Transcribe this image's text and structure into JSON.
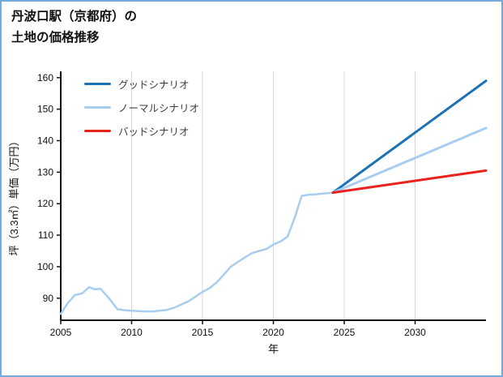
{
  "page": {
    "background": "#ffffff",
    "border_color": "#74a9dc"
  },
  "chart_data": {
    "type": "line",
    "title_lines": [
      "丹波口駅（京都府）の",
      "土地の価格推移"
    ],
    "xlabel": "年",
    "ylabel": "坪（3.3㎡）単価（万円）",
    "xlim": [
      2005,
      2035
    ],
    "ylim": [
      83,
      162
    ],
    "x_ticks": [
      2005,
      2010,
      2015,
      2020,
      2025,
      2030
    ],
    "y_ticks": [
      90,
      100,
      110,
      120,
      130,
      140,
      150,
      160
    ],
    "grid": "vertical-only",
    "grid_color": "#d8d8d8",
    "axis_color": "#111111",
    "legend_position": "top-left-inside",
    "series": [
      {
        "id": "historical-price",
        "label": "",
        "legend": false,
        "color": "#a8cdf0",
        "width": 2.5,
        "x": [
          2005,
          2005.5,
          2006,
          2006.5,
          2007,
          2007.4,
          2007.8,
          2008.4,
          2009,
          2009.5,
          2010,
          2010.5,
          2011,
          2011.5,
          2012,
          2012.5,
          2013,
          2013.5,
          2014,
          2014.5,
          2015,
          2015.5,
          2016,
          2016.5,
          2017,
          2017.5,
          2018,
          2018.5,
          2019,
          2019.5,
          2020,
          2020.5,
          2021,
          2021.5,
          2022,
          2022.5,
          2023,
          2023.5,
          2024,
          2024.2
        ],
        "y": [
          85,
          88.5,
          91,
          91.5,
          93.5,
          92.8,
          93,
          90,
          86.5,
          86.2,
          86,
          85.9,
          85.8,
          85.8,
          86,
          86.3,
          87,
          88,
          89,
          90.5,
          92,
          93.2,
          95,
          97.5,
          100,
          101.5,
          103,
          104.3,
          105,
          105.6,
          107,
          108,
          109.5,
          115.5,
          122.5,
          122.8,
          123,
          123.2,
          123.4,
          123.5
        ]
      },
      {
        "id": "good-scenario",
        "label": "グッドシナリオ",
        "legend": true,
        "color": "#1a72b5",
        "width": 3,
        "x": [
          2024.2,
          2035
        ],
        "y": [
          123.5,
          159
        ]
      },
      {
        "id": "normal-scenario",
        "label": "ノーマルシナリオ",
        "legend": true,
        "color": "#a8cdf0",
        "width": 3,
        "x": [
          2024.2,
          2035
        ],
        "y": [
          123.5,
          144
        ]
      },
      {
        "id": "bad-scenario",
        "label": "バッドシナリオ",
        "legend": true,
        "color": "#e8231d",
        "width": 3,
        "x": [
          2024.2,
          2035
        ],
        "y": [
          123.5,
          130.5
        ]
      }
    ]
  }
}
